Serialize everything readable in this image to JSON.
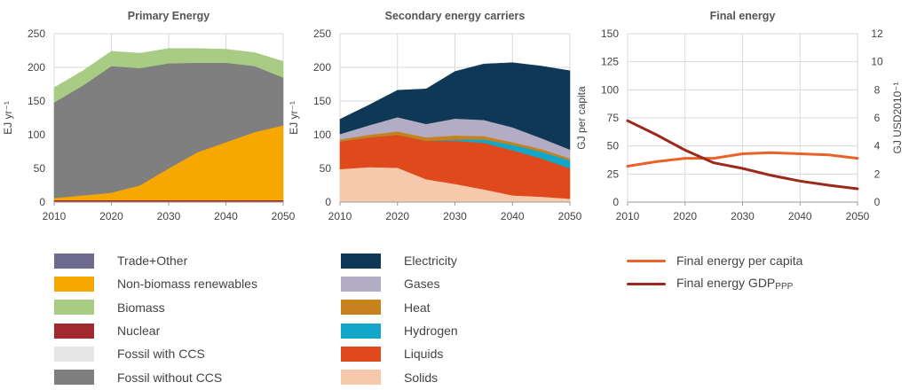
{
  "chart_data": [
    {
      "type": "area",
      "title": "Primary Energy",
      "ylabel": "EJ yr⁻¹",
      "x": [
        2010,
        2015,
        2020,
        2025,
        2030,
        2035,
        2040,
        2045,
        2050
      ],
      "xticks": [
        "2010",
        "2020",
        "2030",
        "2040",
        "2050"
      ],
      "yticks": [
        "0",
        "50",
        "100",
        "150",
        "200",
        "250"
      ],
      "ylim": [
        0,
        250
      ],
      "grid": true,
      "stacked": true,
      "series": [
        {
          "name": "Trade+Other",
          "color": "#6d6a8e",
          "values": [
            1,
            1,
            1,
            1,
            1,
            1,
            1,
            1,
            1
          ]
        },
        {
          "name": "Nuclear",
          "color": "#a1282e",
          "values": [
            2,
            2,
            2,
            2,
            2,
            2,
            2,
            2,
            2
          ]
        },
        {
          "name": "Fossil with CCS",
          "color": "#e6e6e6",
          "values": [
            0,
            0,
            0,
            0,
            0,
            0,
            0,
            0,
            0
          ]
        },
        {
          "name": "Non-biomass renewables",
          "color": "#f7a800",
          "values": [
            3,
            7,
            11,
            22,
            47,
            71,
            86,
            101,
            111
          ]
        },
        {
          "name": "Fossil without CCS",
          "color": "#7f7f7f",
          "values": [
            142,
            163,
            188,
            174,
            156,
            133,
            118,
            98,
            71
          ]
        },
        {
          "name": "Biomass",
          "color": "#a9cc85",
          "values": [
            22,
            22,
            22,
            22,
            22,
            21,
            20,
            20,
            24
          ]
        }
      ]
    },
    {
      "type": "area",
      "title": "Secondary energy carriers",
      "ylabel": "EJ yr⁻¹",
      "x": [
        2010,
        2015,
        2020,
        2025,
        2030,
        2035,
        2040,
        2045,
        2050
      ],
      "xticks": [
        "2010",
        "2020",
        "2030",
        "2040",
        "2050"
      ],
      "yticks": [
        "0",
        "50",
        "100",
        "150",
        "200",
        "250"
      ],
      "ylim": [
        0,
        250
      ],
      "grid": true,
      "stacked": true,
      "series": [
        {
          "name": "Solids",
          "color": "#f7c9ac",
          "values": [
            49,
            52,
            51,
            34,
            27,
            19,
            10,
            8,
            5
          ]
        },
        {
          "name": "Liquids",
          "color": "#e0491b",
          "values": [
            41,
            44,
            49,
            57,
            64,
            69,
            67,
            57,
            45
          ]
        },
        {
          "name": "Hydrogen",
          "color": "#12a6c8",
          "values": [
            0,
            0,
            0,
            0,
            2,
            5,
            8,
            10,
            12
          ]
        },
        {
          "name": "Heat",
          "color": "#c8821d",
          "values": [
            3,
            4,
            5,
            5,
            6,
            5,
            4,
            4,
            3
          ]
        },
        {
          "name": "Gases",
          "color": "#b2acc4",
          "values": [
            8,
            14,
            21,
            20,
            25,
            24,
            22,
            16,
            13
          ]
        },
        {
          "name": "Electricity",
          "color": "#0f3756",
          "values": [
            22,
            30,
            40,
            52,
            70,
            83,
            96,
            107,
            117
          ]
        }
      ]
    },
    {
      "type": "line",
      "title": "Final energy",
      "ylabel_left": "GJ per capita",
      "ylabel_right": "GJ USD2010⁻¹",
      "x": [
        2010,
        2015,
        2020,
        2025,
        2030,
        2035,
        2040,
        2045,
        2050
      ],
      "xticks": [
        "2010",
        "2020",
        "2030",
        "2040",
        "2050"
      ],
      "yticks_left": [
        "0",
        "25",
        "50",
        "75",
        "100",
        "125",
        "150"
      ],
      "yticks_right": [
        "0",
        "2",
        "4",
        "6",
        "8",
        "10",
        "12"
      ],
      "ylim_left": [
        0,
        150
      ],
      "ylim_right": [
        0,
        12
      ],
      "grid": true,
      "series": [
        {
          "name": "Final energy per capita",
          "axis": "left",
          "color": "#e8622a",
          "values": [
            32,
            36,
            39,
            39,
            43,
            44,
            43,
            42,
            39
          ]
        },
        {
          "name": "Final energy GDP",
          "name_sub": "PPP",
          "axis": "right",
          "color": "#9b2a1c",
          "values": [
            5.8,
            4.8,
            3.7,
            2.8,
            2.4,
            1.9,
            1.5,
            1.2,
            0.95
          ]
        }
      ]
    }
  ],
  "legend": {
    "primary": [
      {
        "label": "Trade+Other",
        "color": "#6d6a8e"
      },
      {
        "label": "Non-biomass renewables",
        "color": "#f7a800"
      },
      {
        "label": "Biomass",
        "color": "#a9cc85"
      },
      {
        "label": "Nuclear",
        "color": "#a1282e"
      },
      {
        "label": "Fossil with CCS",
        "color": "#e6e6e6"
      },
      {
        "label": "Fossil without CCS",
        "color": "#7f7f7f"
      }
    ],
    "secondary": [
      {
        "label": "Electricity",
        "color": "#0f3756"
      },
      {
        "label": "Gases",
        "color": "#b2acc4"
      },
      {
        "label": "Heat",
        "color": "#c8821d"
      },
      {
        "label": "Hydrogen",
        "color": "#12a6c8"
      },
      {
        "label": "Liquids",
        "color": "#e0491b"
      },
      {
        "label": "Solids",
        "color": "#f7c9ac"
      }
    ],
    "final": [
      {
        "label": "Final energy per capita",
        "color": "#e8622a"
      },
      {
        "label": "Final energy GDP",
        "sub": "PPP",
        "color": "#9b2a1c"
      }
    ]
  }
}
